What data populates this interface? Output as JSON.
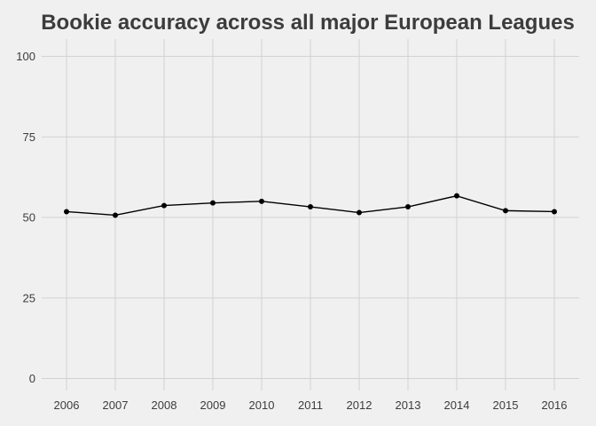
{
  "chart_data": {
    "type": "line",
    "title": "Bookie accuracy across all major European Leagues",
    "xlabel": "",
    "ylabel": "",
    "x": [
      2006,
      2007,
      2008,
      2009,
      2010,
      2011,
      2012,
      2013,
      2014,
      2015,
      2016
    ],
    "series": [
      {
        "values": [
          51.8,
          50.7,
          53.7,
          54.5,
          55.0,
          53.3,
          51.5,
          53.3,
          56.7,
          52.1,
          51.8
        ]
      }
    ],
    "ylim": [
      0,
      100
    ],
    "yticks": [
      0,
      25,
      50,
      75,
      100
    ],
    "grid": true,
    "legend": "none",
    "colors": {
      "background": "#f0f0f0",
      "grid": "#d2d2d2",
      "line": "#000000",
      "text": "#3c3c3c"
    }
  }
}
